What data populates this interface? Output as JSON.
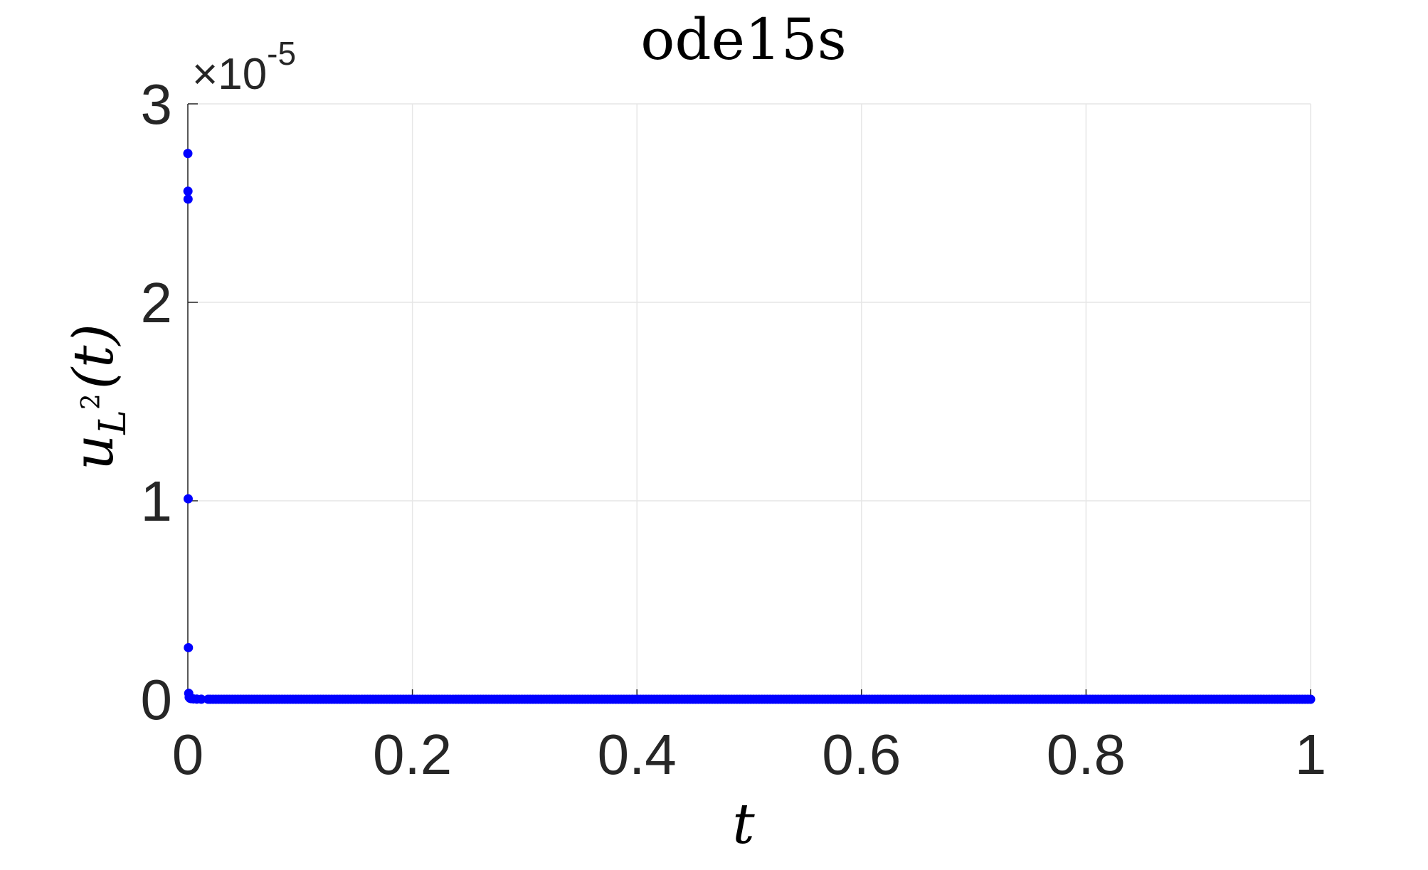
{
  "chart_data": {
    "type": "scatter",
    "title": "ode15s",
    "xlabel": "t",
    "ylabel_main": "u",
    "ylabel_subscript": "L",
    "ylabel_superscript": "2",
    "ylabel_suffix": "(t)",
    "xlim": [
      0,
      1
    ],
    "ylim": [
      0,
      3e-05
    ],
    "y_multiplier_base": "×10",
    "y_multiplier_exponent": "-5",
    "x_ticks": [
      0,
      0.2,
      0.4,
      0.6,
      0.8,
      1
    ],
    "x_tick_labels": [
      "0",
      "0.2",
      "0.4",
      "0.6",
      "0.8",
      "1"
    ],
    "y_ticks": [
      0,
      1e-05,
      2e-05,
      3e-05
    ],
    "y_tick_labels": [
      "0",
      "1",
      "2",
      "3"
    ],
    "grid": true,
    "marker_color": "#0000ff",
    "series": [
      {
        "x": [
          0,
          0.0001,
          0.0002,
          0.0003,
          0.0005,
          0.0008,
          0.0012,
          0.002,
          0.003,
          0.005,
          0.008,
          0.012,
          0.018
        ],
        "y": [
          2.75e-05,
          2.56e-05,
          2.52e-05,
          1.01e-05,
          2.6e-06,
          3e-07,
          1e-07,
          5e-08,
          3e-08,
          2e-08,
          1e-08,
          5e-09,
          2e-09
        ]
      },
      {
        "x_start": 0.02,
        "x_end": 1,
        "count": 400,
        "y": 0
      }
    ]
  }
}
